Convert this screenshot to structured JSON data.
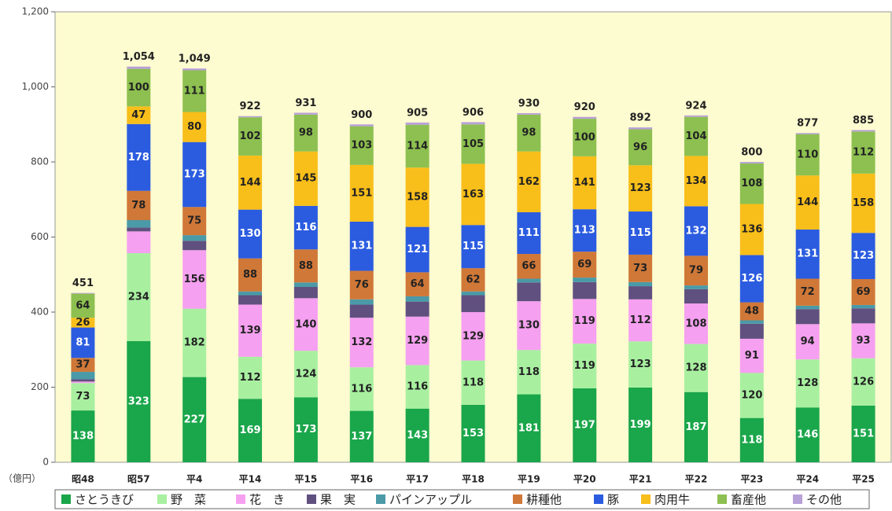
{
  "chart_data": {
    "type": "stacked_bar",
    "y_unit_label": "（億円）",
    "categories": [
      "昭48",
      "昭57",
      "平4",
      "平14",
      "平15",
      "平16",
      "平17",
      "平18",
      "平19",
      "平20",
      "平21",
      "平22",
      "平23",
      "平24",
      "平25"
    ],
    "totals": [
      451,
      1054,
      1049,
      922,
      931,
      900,
      905,
      906,
      930,
      920,
      892,
      924,
      800,
      877,
      885
    ],
    "total_labels": [
      "451",
      "1,054",
      "1,049",
      "922",
      "931",
      "900",
      "905",
      "906",
      "930",
      "920",
      "892",
      "924",
      "800",
      "877",
      "885"
    ],
    "series": [
      {
        "name": "さとうきび",
        "color": "#1aa64a",
        "label_color": "#ffffff",
        "values": [
          138,
          323,
          227,
          169,
          173,
          137,
          143,
          153,
          181,
          197,
          199,
          187,
          118,
          146,
          151
        ],
        "value_labels": [
          "138",
          "323",
          "227",
          "169",
          "173",
          "137",
          "143",
          "153",
          "181",
          "197",
          "199",
          "187",
          "118",
          "146",
          "151"
        ]
      },
      {
        "name": "野　菜",
        "color": "#a8f0a0",
        "label_color": "#222222",
        "values": [
          73,
          234,
          182,
          112,
          124,
          116,
          116,
          118,
          118,
          119,
          123,
          128,
          120,
          128,
          126
        ],
        "value_labels": [
          "73",
          "234",
          "182",
          "112",
          "124",
          "116",
          "116",
          "118",
          "118",
          "119",
          "123",
          "128",
          "120",
          "128",
          "126"
        ]
      },
      {
        "name": "花　き",
        "color": "#f5a0f0",
        "label_color": "#222222",
        "values": [
          4,
          58,
          156,
          139,
          140,
          132,
          129,
          129,
          130,
          119,
          112,
          108,
          91,
          94,
          93
        ],
        "value_labels": [
          null,
          null,
          "156",
          "139",
          "140",
          "132",
          "129",
          "129",
          "130",
          "119",
          "112",
          "108",
          "91",
          "94",
          "93"
        ]
      },
      {
        "name": "果　実",
        "color": "#605080",
        "values": [
          6,
          10,
          25,
          25,
          30,
          35,
          40,
          45,
          50,
          45,
          35,
          38,
          40,
          40,
          40
        ]
      },
      {
        "name": "パインアップル",
        "color": "#4a9aa8",
        "values": [
          20,
          20,
          15,
          10,
          12,
          14,
          14,
          10,
          10,
          12,
          11,
          10,
          9,
          9,
          9
        ]
      },
      {
        "name": "耕種他",
        "color": "#d07838",
        "label_color": "#222222",
        "values": [
          37,
          78,
          75,
          88,
          88,
          76,
          64,
          62,
          66,
          69,
          73,
          79,
          48,
          72,
          69
        ],
        "value_labels": [
          "37",
          "78",
          "75",
          "88",
          "88",
          "76",
          "64",
          "62",
          "66",
          "69",
          "73",
          "79",
          "48",
          "72",
          "69"
        ]
      },
      {
        "name": "豚",
        "color": "#2b5ce0",
        "label_color": "#ffffff",
        "values": [
          81,
          178,
          173,
          130,
          116,
          131,
          121,
          115,
          111,
          113,
          115,
          132,
          126,
          131,
          123
        ],
        "value_labels": [
          "81",
          "178",
          "173",
          "130",
          "116",
          "131",
          "121",
          "115",
          "111",
          "113",
          "115",
          "132",
          "126",
          "131",
          "123"
        ]
      },
      {
        "name": "肉用牛",
        "color": "#f8be1a",
        "label_color": "#222222",
        "values": [
          26,
          47,
          80,
          144,
          145,
          151,
          158,
          163,
          162,
          141,
          123,
          134,
          136,
          144,
          158
        ],
        "value_labels": [
          "26",
          "47",
          "80",
          "144",
          "145",
          "151",
          "158",
          "163",
          "162",
          "141",
          "123",
          "134",
          "136",
          "144",
          "158"
        ]
      },
      {
        "name": "畜産他",
        "color": "#8dc050",
        "label_color": "#222222",
        "values": [
          64,
          100,
          111,
          102,
          98,
          103,
          114,
          105,
          98,
          100,
          96,
          104,
          108,
          110,
          112
        ],
        "value_labels": [
          "64",
          "100",
          "111",
          "102",
          "98",
          "103",
          "114",
          "105",
          "98",
          "100",
          "96",
          "104",
          "108",
          "110",
          "112"
        ]
      },
      {
        "name": "その他",
        "color": "#b8a0d8",
        "values": [
          2,
          6,
          5,
          3,
          5,
          5,
          6,
          6,
          4,
          5,
          5,
          4,
          4,
          3,
          4
        ]
      }
    ],
    "ylim": [
      0,
      1200
    ],
    "yticks": [
      0,
      200,
      400,
      600,
      800,
      {
        "value": 1000,
        "label": "1,000"
      },
      {
        "value": 1200,
        "label": "1,200"
      }
    ],
    "plot_background": "#fdfbd0"
  }
}
